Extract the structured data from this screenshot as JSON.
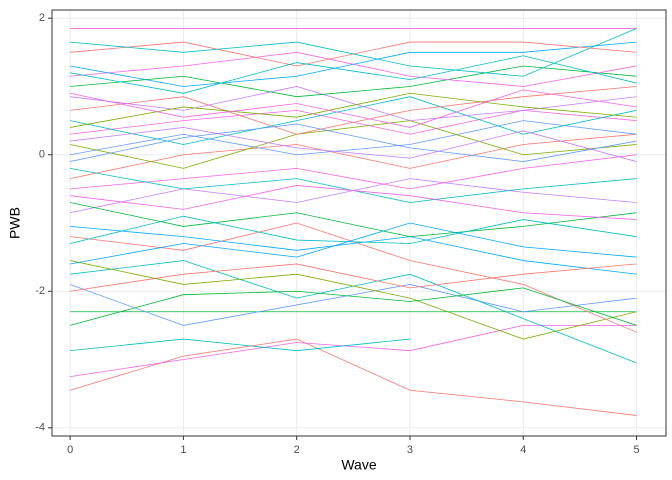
{
  "chart_data": {
    "type": "line",
    "x_label": "Wave",
    "y_label": "PWB",
    "x": [
      0,
      1,
      2,
      3,
      4,
      5
    ],
    "xlim": [
      -0.16,
      5.26
    ],
    "ylim": [
      -4.12,
      2.12
    ],
    "xticks": [
      0,
      1,
      2,
      3,
      4,
      5
    ],
    "yticks": [
      -4,
      -2,
      0,
      2
    ],
    "grid": true,
    "series": [
      {
        "color": "#F8766D",
        "values": [
          -3.45,
          -2.95,
          -2.7,
          -3.45,
          -3.62,
          -3.82
        ]
      },
      {
        "color": "#F564E3",
        "values": [
          -3.25,
          -3.0,
          -2.75,
          -2.87,
          -2.5,
          -2.5
        ]
      },
      {
        "color": "#00BFC4",
        "values": [
          -2.87,
          -2.7,
          -2.87,
          -2.7,
          null,
          null
        ]
      },
      {
        "color": "#00BA38",
        "values": [
          -2.3,
          -2.3,
          -2.3,
          -2.3,
          -2.3,
          -2.3
        ]
      },
      {
        "color": "#619CFF",
        "values": [
          -1.9,
          -2.5,
          -2.2,
          -1.9,
          -2.3,
          -2.1
        ]
      },
      {
        "color": "#00BFC4",
        "values": [
          -1.75,
          -1.55,
          -2.1,
          -1.75,
          -2.4,
          -3.05
        ]
      },
      {
        "color": "#7CAE00",
        "values": [
          -1.55,
          -1.9,
          -1.75,
          -2.1,
          -2.7,
          -2.3
        ]
      },
      {
        "color": "#F8766D",
        "values": [
          -1.2,
          -1.4,
          -1.0,
          -1.55,
          -1.9,
          -2.6
        ]
      },
      {
        "color": "#00A9FF",
        "values": [
          -1.05,
          -1.2,
          -1.4,
          -1.2,
          -1.55,
          -1.75
        ]
      },
      {
        "color": "#C77CFF",
        "values": [
          -0.85,
          -0.5,
          -0.7,
          -0.35,
          -0.55,
          -0.7
        ]
      },
      {
        "color": "#00BA38",
        "values": [
          -0.7,
          -1.05,
          -0.85,
          -1.2,
          -1.05,
          -0.85
        ]
      },
      {
        "color": "#F564E3",
        "values": [
          -0.5,
          -0.35,
          -0.2,
          -0.5,
          -0.2,
          0.0
        ]
      },
      {
        "color": "#F8766D",
        "values": [
          -0.35,
          0.0,
          0.15,
          -0.2,
          0.15,
          0.3
        ]
      },
      {
        "color": "#00BFC4",
        "values": [
          -0.2,
          -0.5,
          -0.35,
          -0.7,
          -0.5,
          -0.35
        ]
      },
      {
        "color": "#619CFF",
        "values": [
          0.0,
          0.3,
          0.0,
          0.15,
          0.5,
          0.3
        ]
      },
      {
        "color": "#7CAE00",
        "values": [
          0.15,
          -0.2,
          0.3,
          0.5,
          0.0,
          0.15
        ]
      },
      {
        "color": "#F564E3",
        "values": [
          0.3,
          0.5,
          0.65,
          0.3,
          0.65,
          0.5
        ]
      },
      {
        "color": "#00BFC4",
        "values": [
          0.5,
          0.15,
          0.5,
          0.85,
          0.3,
          0.65
        ]
      },
      {
        "color": "#F8766D",
        "values": [
          0.65,
          0.85,
          0.3,
          0.65,
          0.85,
          1.0
        ]
      },
      {
        "color": "#C77CFF",
        "values": [
          0.85,
          0.65,
          1.0,
          0.5,
          0.65,
          0.85
        ]
      },
      {
        "color": "#00BA38",
        "values": [
          1.0,
          1.15,
          0.85,
          1.0,
          1.3,
          1.15
        ]
      },
      {
        "color": "#F564E3",
        "values": [
          1.15,
          1.3,
          1.5,
          1.15,
          1.0,
          1.3
        ]
      },
      {
        "color": "#00A9FF",
        "values": [
          1.3,
          1.0,
          1.15,
          1.5,
          1.5,
          1.65
        ]
      },
      {
        "color": "#F8766D",
        "values": [
          1.5,
          1.65,
          1.3,
          1.65,
          1.65,
          1.5
        ]
      },
      {
        "color": "#F564E3",
        "values": [
          1.85,
          1.85,
          1.85,
          1.85,
          1.85,
          1.85
        ]
      },
      {
        "color": "#00BFC4",
        "values": [
          1.65,
          1.5,
          1.65,
          1.3,
          1.15,
          1.85
        ]
      },
      {
        "color": "#7CAE00",
        "values": [
          0.4,
          0.7,
          0.55,
          0.9,
          0.7,
          0.55
        ]
      },
      {
        "color": "#619CFF",
        "values": [
          -0.1,
          0.25,
          0.45,
          0.1,
          -0.1,
          0.2
        ]
      },
      {
        "color": "#F564E3",
        "values": [
          0.9,
          0.55,
          0.75,
          0.4,
          0.95,
          0.7
        ]
      },
      {
        "color": "#00BFC4",
        "values": [
          -1.3,
          -0.9,
          -1.25,
          -1.3,
          -0.95,
          -1.2
        ]
      },
      {
        "color": "#F8766D",
        "values": [
          -2.0,
          -1.75,
          -1.6,
          -1.95,
          -1.75,
          -1.6
        ]
      },
      {
        "color": "#00BA38",
        "values": [
          -2.5,
          -2.05,
          -2.0,
          -2.15,
          -1.95,
          -2.5
        ]
      },
      {
        "color": "#C77CFF",
        "values": [
          0.2,
          0.4,
          0.1,
          -0.05,
          0.35,
          -0.1
        ]
      },
      {
        "color": "#00BFC4",
        "values": [
          1.2,
          0.9,
          1.35,
          1.1,
          1.45,
          1.05
        ]
      },
      {
        "color": "#F564E3",
        "values": [
          -0.6,
          -0.8,
          -0.45,
          -0.6,
          -0.85,
          -0.95
        ]
      },
      {
        "color": "#00A9FF",
        "values": [
          -1.6,
          -1.3,
          -1.5,
          -1.0,
          -1.35,
          -1.5
        ]
      }
    ]
  }
}
